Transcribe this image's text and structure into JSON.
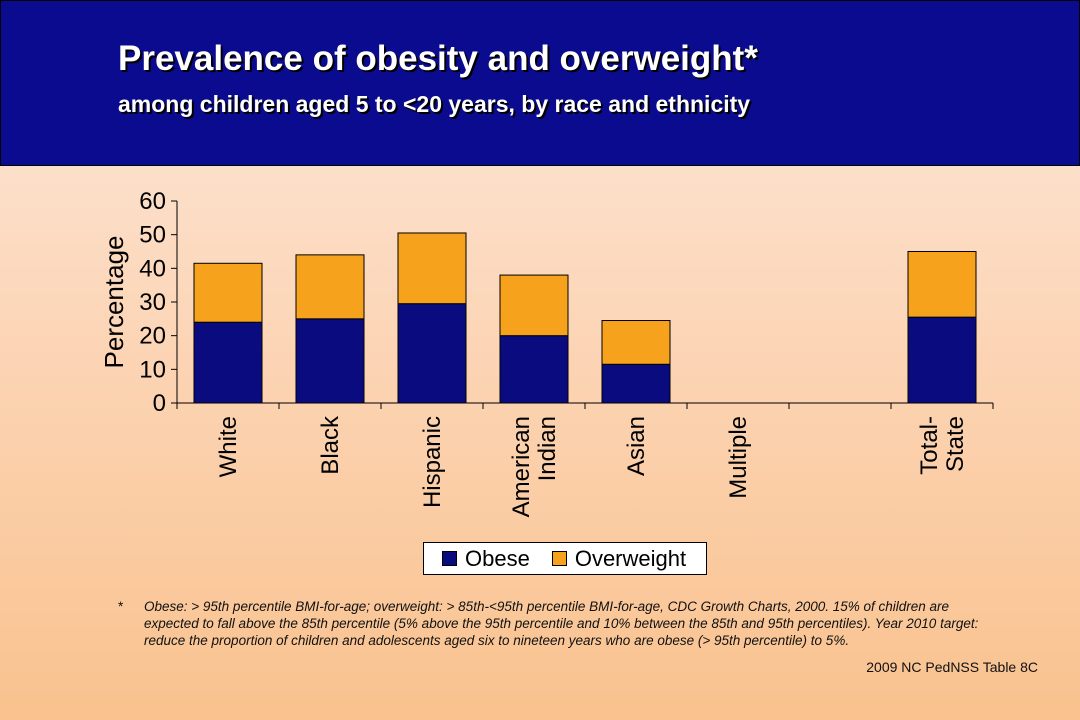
{
  "header": {
    "title": "Prevalence of obesity and overweight*",
    "subtitle": "among children aged 5 to <20 years, by race and ethnicity"
  },
  "colors": {
    "header_bg": "#0b0b8f",
    "obese": "#0b0b80",
    "overweight": "#f7a21c"
  },
  "chart_data": {
    "type": "bar",
    "stacked": true,
    "categories": [
      "White",
      "Black",
      "Hispanic",
      "American Indian",
      "Asian",
      "Multiple",
      "",
      "Total-State"
    ],
    "category_lines": [
      [
        "White"
      ],
      [
        "Black"
      ],
      [
        "Hispanic"
      ],
      [
        "American",
        "Indian"
      ],
      [
        "Asian"
      ],
      [
        "Multiple"
      ],
      [],
      [
        "Total-",
        "State"
      ]
    ],
    "series": [
      {
        "name": "Obese",
        "values": [
          24,
          25,
          29.5,
          20,
          11.5,
          0,
          0,
          25.5
        ]
      },
      {
        "name": "Overweight",
        "values": [
          17.5,
          19,
          21,
          18,
          13,
          0,
          0,
          19.5
        ]
      }
    ],
    "ylabel": "Percentage",
    "xlabel": "",
    "ylim": [
      0,
      60
    ],
    "yticks": [
      0,
      10,
      20,
      30,
      40,
      50,
      60
    ],
    "grid": false,
    "legend_position": "bottom-center"
  },
  "legend": {
    "obese_label": "Obese",
    "overweight_label": "Overweight"
  },
  "footnote": {
    "mark": "*",
    "text": "Obese: > 95th percentile BMI-for-age; overweight: > 85th-<95th percentile BMI-for-age, CDC Growth Charts, 2000. 15% of children are expected to fall above the 85th percentile (5% above the 95th percentile and 10% between the 85th and 95th percentiles). Year 2010 target: reduce the proportion of children and adolescents aged six to nineteen years who are obese (> 95th percentile) to 5%."
  },
  "source": "2009 NC PedNSS Table 8C"
}
